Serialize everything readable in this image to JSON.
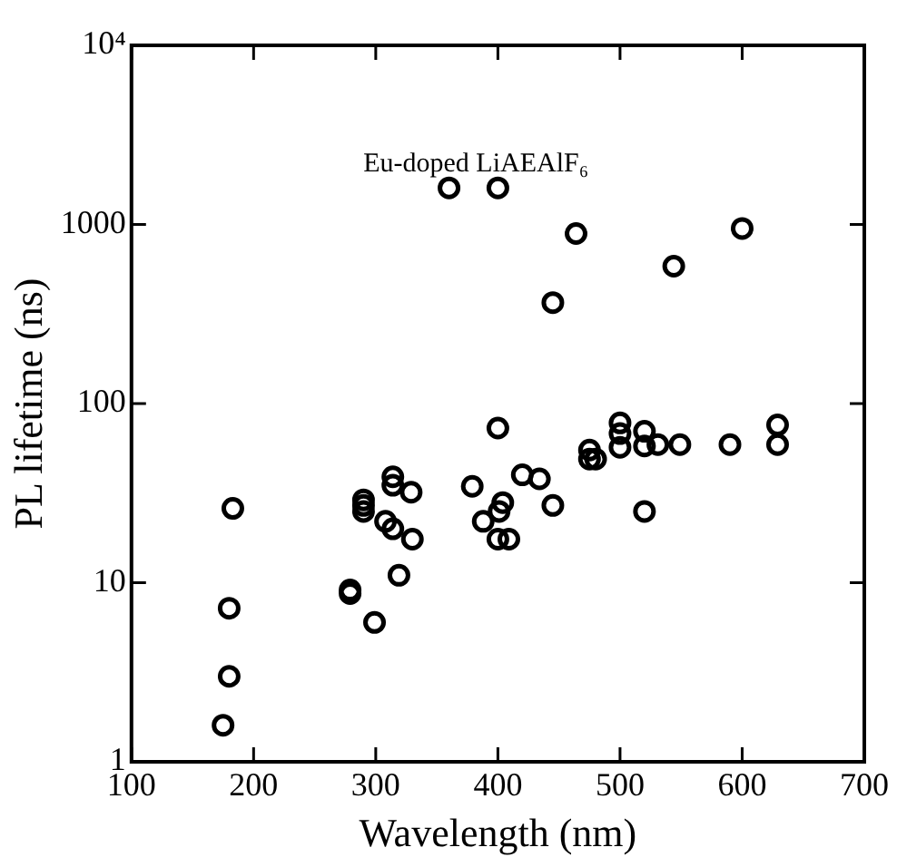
{
  "chart_data": {
    "type": "scatter",
    "xlabel": "Wavelength (nm)",
    "ylabel": "PL lifetime (ns)",
    "log": "y",
    "grid": false,
    "legend": false,
    "marker": "circle",
    "xlim": [
      100,
      700
    ],
    "xticks": [
      100,
      200,
      300,
      400,
      500,
      600,
      700
    ],
    "ylim": [
      1,
      10000
    ],
    "yticks": [
      1,
      10,
      100,
      1000,
      {
        "value": 10000,
        "label": "10⁴"
      }
    ],
    "annotations": [
      "Eu-doped LiAEAlF₆"
    ],
    "series": [
      {
        "color": "#000000",
        "x": [
          360,
          400,
          464,
          600,
          544,
          445,
          183,
          180,
          180,
          175,
          290,
          290,
          290,
          279,
          279,
          299,
          314,
          314,
          329,
          308,
          314,
          330,
          319,
          379,
          400,
          388,
          400,
          401,
          404,
          409,
          420,
          434,
          445,
          475,
          475,
          480,
          500,
          500,
          500,
          520,
          520,
          531,
          549,
          590,
          629,
          629,
          520
        ],
        "values": [
          1600,
          1600,
          890,
          950,
          585,
          366,
          26,
          7.2,
          3.0,
          1.6,
          29,
          27,
          25,
          9.1,
          8.7,
          6.0,
          39,
          35,
          32,
          22,
          20,
          17.5,
          11,
          34.5,
          73,
          22,
          17.5,
          25,
          28,
          17.5,
          40,
          38,
          27,
          55,
          49,
          49,
          78,
          68,
          57,
          70,
          58,
          59,
          59,
          59,
          76,
          59,
          25
        ]
      }
    ]
  }
}
